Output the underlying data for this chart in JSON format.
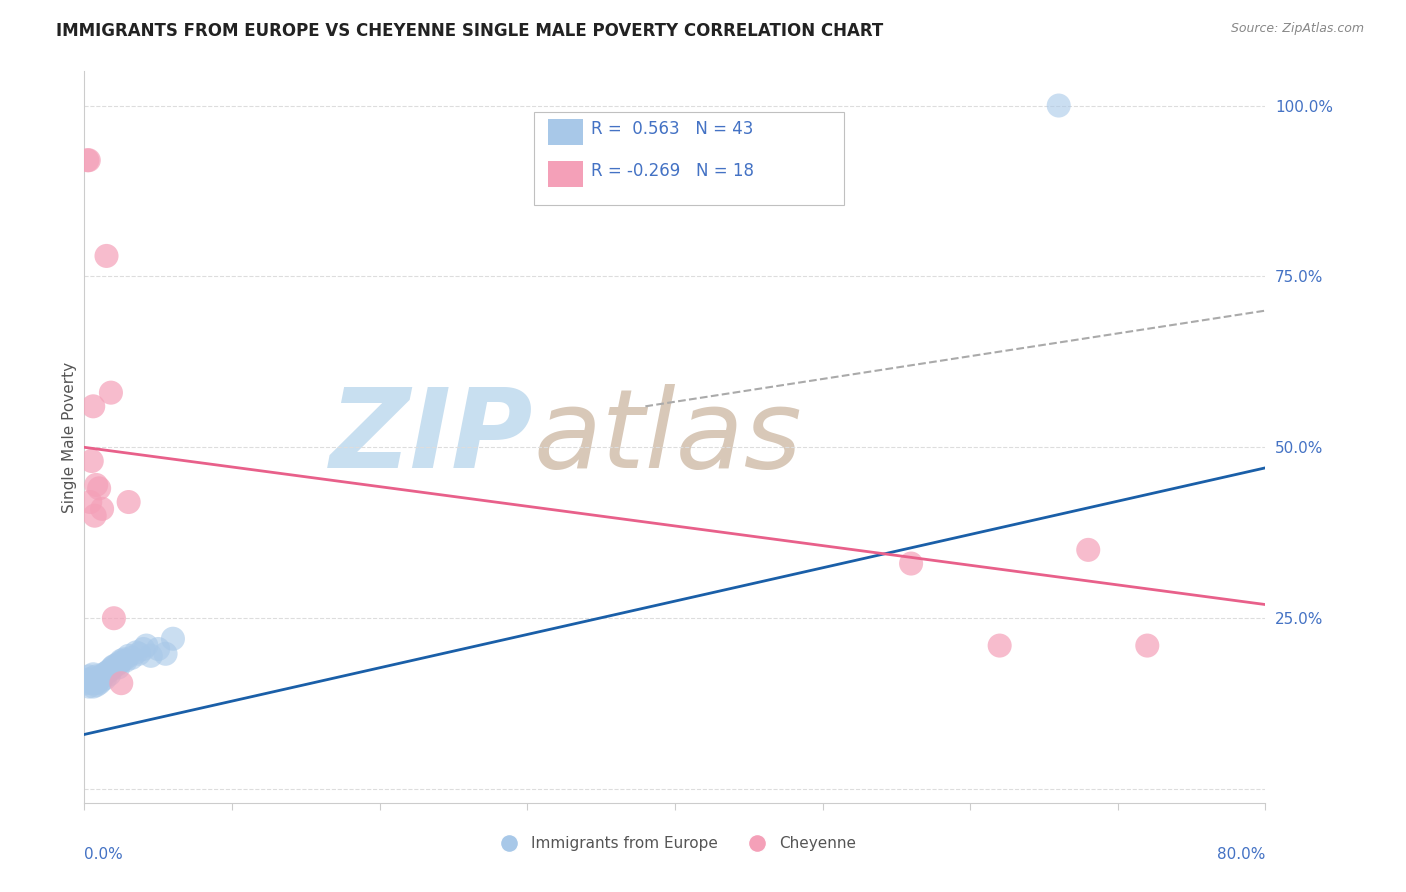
{
  "title": "IMMIGRANTS FROM EUROPE VS CHEYENNE SINGLE MALE POVERTY CORRELATION CHART",
  "source": "Source: ZipAtlas.com",
  "ylabel": "Single Male Poverty",
  "legend_blue_r": "R =  0.563",
  "legend_blue_n": "N = 43",
  "legend_pink_r": "R = -0.269",
  "legend_pink_n": "N = 18",
  "blue_color": "#a8c8e8",
  "pink_color": "#f4a0b8",
  "blue_line_color": "#1a5fa8",
  "pink_line_color": "#e8608a",
  "dashed_line_color": "#aaaaaa",
  "watermark_zip_color": "#c8dff0",
  "watermark_atlas_color": "#d8c8b8",
  "blue_dots_x": [
    0.001,
    0.002,
    0.003,
    0.003,
    0.004,
    0.005,
    0.005,
    0.006,
    0.006,
    0.007,
    0.007,
    0.008,
    0.008,
    0.009,
    0.01,
    0.01,
    0.011,
    0.012,
    0.013,
    0.014,
    0.015,
    0.016,
    0.017,
    0.018,
    0.019,
    0.02,
    0.022,
    0.023,
    0.024,
    0.025,
    0.027,
    0.028,
    0.03,
    0.032,
    0.035,
    0.037,
    0.04,
    0.042,
    0.045,
    0.05,
    0.055,
    0.06,
    0.66
  ],
  "blue_dots_y": [
    0.155,
    0.16,
    0.15,
    0.165,
    0.158,
    0.155,
    0.162,
    0.15,
    0.168,
    0.155,
    0.16,
    0.152,
    0.165,
    0.158,
    0.155,
    0.162,
    0.158,
    0.165,
    0.168,
    0.162,
    0.17,
    0.172,
    0.168,
    0.175,
    0.178,
    0.18,
    0.182,
    0.178,
    0.185,
    0.188,
    0.19,
    0.188,
    0.195,
    0.192,
    0.2,
    0.198,
    0.205,
    0.21,
    0.195,
    0.205,
    0.198,
    0.22,
    1.0
  ],
  "pink_dots_x": [
    0.002,
    0.003,
    0.004,
    0.005,
    0.006,
    0.007,
    0.008,
    0.01,
    0.012,
    0.015,
    0.018,
    0.02,
    0.025,
    0.03,
    0.56,
    0.62,
    0.68,
    0.72
  ],
  "pink_dots_y": [
    0.92,
    0.92,
    0.42,
    0.48,
    0.56,
    0.4,
    0.445,
    0.44,
    0.41,
    0.78,
    0.58,
    0.25,
    0.155,
    0.42,
    0.33,
    0.21,
    0.35,
    0.21
  ],
  "blue_line_x0": 0.0,
  "blue_line_y0": 0.08,
  "blue_line_x1": 0.8,
  "blue_line_y1": 0.47,
  "pink_line_x0": 0.0,
  "pink_line_y0": 0.5,
  "pink_line_x1": 0.8,
  "pink_line_y1": 0.27,
  "dashed_line_x0": 0.38,
  "dashed_line_y0": 0.56,
  "dashed_line_x1": 0.8,
  "dashed_line_y1": 0.7,
  "xlim": [
    0.0,
    0.8
  ],
  "ylim": [
    -0.02,
    1.05
  ],
  "legend_label_blue": "Immigrants from Europe",
  "legend_label_pink": "Cheyenne"
}
